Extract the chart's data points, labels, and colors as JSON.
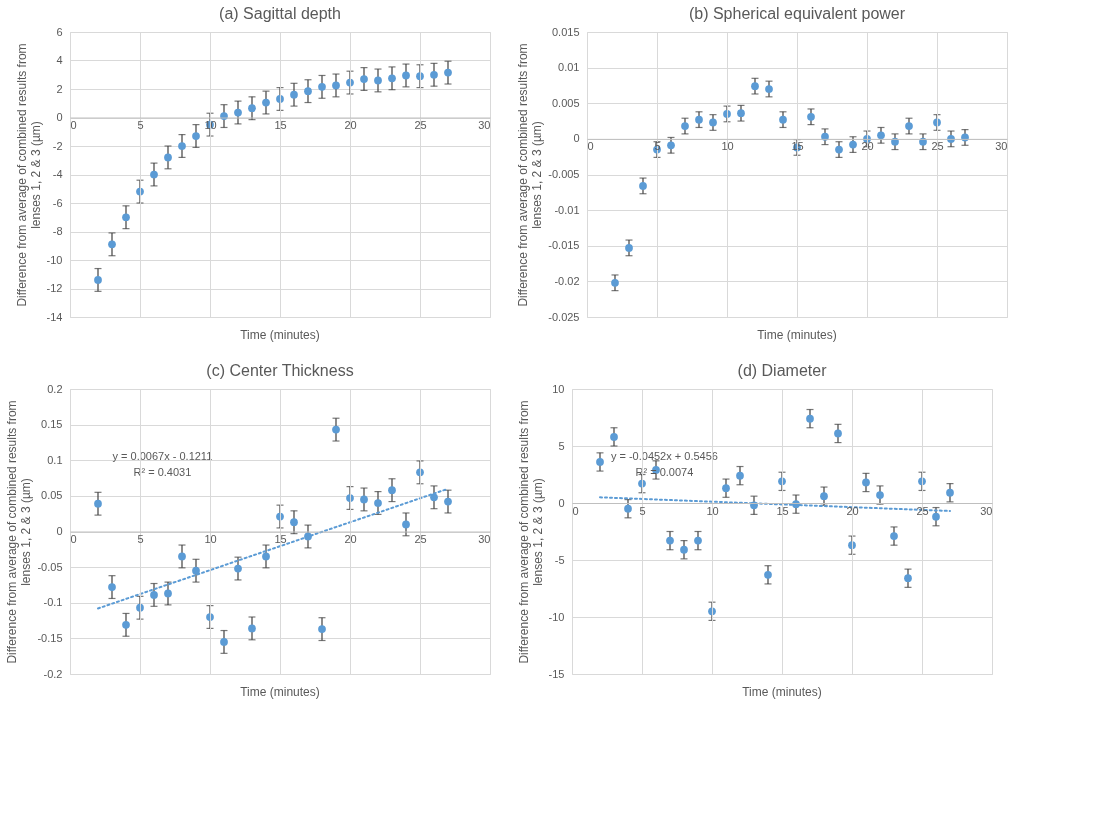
{
  "chart_data": [
    {
      "type": "scatter",
      "title": "(a) Sagittal depth",
      "xlabel": "Time (minutes)",
      "ylabel": "Difference from average of combined results from lenses 1, 2 & 3 (µm)",
      "xlim": [
        0,
        30
      ],
      "xticks": [
        0,
        5,
        10,
        15,
        20,
        25,
        30
      ],
      "ylim": [
        -14,
        6
      ],
      "yticks": [
        -14,
        -12,
        -10,
        -8,
        -6,
        -4,
        -2,
        0,
        2,
        4,
        6
      ],
      "grid": true,
      "marker": "circle",
      "series": [
        {
          "color": "#5b9bd5",
          "x": [
            2,
            3,
            4,
            5,
            6,
            7,
            8,
            9,
            10,
            11,
            12,
            13,
            14,
            15,
            16,
            17,
            18,
            19,
            20,
            21,
            22,
            23,
            24,
            25,
            26,
            27
          ],
          "values": [
            -11.4,
            -8.9,
            -7.0,
            -5.2,
            -4.0,
            -2.8,
            -2.0,
            -1.3,
            -0.5,
            0.1,
            0.35,
            0.65,
            1.05,
            1.3,
            1.6,
            1.85,
            2.15,
            2.25,
            2.45,
            2.7,
            2.6,
            2.75,
            2.95,
            2.9,
            3.0,
            3.15
          ],
          "errors": [
            0.8,
            0.8,
            0.8,
            0.8,
            0.8,
            0.8,
            0.8,
            0.8,
            0.8,
            0.8,
            0.8,
            0.8,
            0.8,
            0.8,
            0.8,
            0.8,
            0.8,
            0.8,
            0.8,
            0.8,
            0.8,
            0.8,
            0.8,
            0.8,
            0.8,
            0.8
          ]
        }
      ]
    },
    {
      "type": "scatter",
      "title": "(b) Spherical equivalent power",
      "xlabel": "Time (minutes)",
      "ylabel": "Difference from average of combined results from lenses 1, 2 & 3 (µm)",
      "xlim": [
        0,
        30
      ],
      "xticks": [
        0,
        5,
        10,
        15,
        20,
        25,
        30
      ],
      "ylim": [
        -0.025,
        0.015
      ],
      "yticks": [
        -0.025,
        -0.02,
        -0.015,
        -0.01,
        -0.005,
        0,
        0.005,
        0.01,
        0.015
      ],
      "grid": true,
      "marker": "circle",
      "series": [
        {
          "color": "#5b9bd5",
          "x": [
            2,
            3,
            4,
            5,
            6,
            7,
            8,
            9,
            10,
            11,
            12,
            13,
            14,
            15,
            16,
            17,
            18,
            19,
            20,
            21,
            22,
            23,
            24,
            25,
            26,
            27
          ],
          "values": [
            -0.0202,
            -0.0153,
            -0.0066,
            -0.0015,
            -0.0009,
            0.0018,
            0.0027,
            0.0023,
            0.0035,
            0.0036,
            0.0074,
            0.007,
            0.0027,
            -0.0012,
            0.0031,
            0.0003,
            -0.0015,
            -0.0008,
            0.0,
            0.0005,
            -0.0004,
            0.0018,
            -0.0004,
            0.0023,
            0.0,
            0.0002
          ],
          "errors": [
            0.0011,
            0.0011,
            0.0011,
            0.0011,
            0.0011,
            0.0011,
            0.0011,
            0.0011,
            0.0011,
            0.0011,
            0.0011,
            0.0011,
            0.0011,
            0.0011,
            0.0011,
            0.0011,
            0.0011,
            0.0011,
            0.0011,
            0.0011,
            0.0011,
            0.0011,
            0.0011,
            0.0011,
            0.0011,
            0.0011
          ]
        }
      ]
    },
    {
      "type": "scatter",
      "title": "(c) Center Thickness",
      "xlabel": "Time (minutes)",
      "ylabel": "Difference from average of combined results from lenses 1, 2 & 3 (µm)",
      "xlim": [
        0,
        30
      ],
      "xticks": [
        0,
        5,
        10,
        15,
        20,
        25,
        30
      ],
      "ylim": [
        -0.2,
        0.2
      ],
      "yticks": [
        -0.2,
        -0.15,
        -0.1,
        -0.05,
        0,
        0.05,
        0.1,
        0.15,
        0.2
      ],
      "grid": true,
      "marker": "circle",
      "annotations": [
        "y = 0.0067x - 0.1211",
        "R² = 0.4031"
      ],
      "series": [
        {
          "color": "#5b9bd5",
          "x": [
            2,
            3,
            4,
            5,
            6,
            7,
            8,
            9,
            10,
            11,
            12,
            13,
            14,
            15,
            16,
            17,
            18,
            19,
            20,
            21,
            22,
            23,
            24,
            25,
            26,
            27
          ],
          "values": [
            0.039,
            -0.078,
            -0.131,
            -0.107,
            -0.089,
            -0.087,
            -0.035,
            -0.055,
            -0.12,
            -0.155,
            -0.052,
            -0.136,
            -0.035,
            0.021,
            0.013,
            -0.007,
            -0.137,
            0.143,
            0.047,
            0.045,
            0.04,
            0.058,
            0.01,
            0.083,
            0.048,
            0.042
          ],
          "errors": [
            0.016,
            0.016,
            0.016,
            0.016,
            0.016,
            0.016,
            0.016,
            0.016,
            0.016,
            0.016,
            0.016,
            0.016,
            0.016,
            0.016,
            0.016,
            0.016,
            0.016,
            0.016,
            0.016,
            0.016,
            0.016,
            0.016,
            0.016,
            0.016,
            0.016,
            0.016
          ]
        },
        {
          "type": "line",
          "color": "#5b9bd5",
          "x": [
            2,
            27
          ],
          "values": [
            -0.108,
            0.06
          ],
          "line_style": "dotted",
          "marker": "none"
        }
      ]
    },
    {
      "type": "scatter",
      "title": "(d) Diameter",
      "xlabel": "Time (minutes)",
      "ylabel": "Difference from average of combined results from lenses 1, 2 & 3 (µm)",
      "xlim": [
        0,
        30
      ],
      "xticks": [
        0,
        5,
        10,
        15,
        20,
        25,
        30
      ],
      "ylim": [
        -15,
        10
      ],
      "yticks": [
        -15,
        -10,
        -5,
        0,
        5,
        10
      ],
      "grid": true,
      "marker": "circle",
      "annotations": [
        "y = -0.0452x + 0.5456",
        "R² = 0.0074"
      ],
      "series": [
        {
          "color": "#5b9bd5",
          "x": [
            2,
            3,
            4,
            5,
            6,
            7,
            8,
            9,
            10,
            11,
            12,
            13,
            14,
            15,
            16,
            17,
            18,
            19,
            20,
            21,
            22,
            23,
            24,
            25,
            26,
            27
          ],
          "values": [
            3.6,
            5.8,
            -0.5,
            1.7,
            2.9,
            -3.3,
            -4.1,
            -3.3,
            -9.5,
            1.3,
            2.4,
            -0.2,
            -6.3,
            1.9,
            -0.1,
            7.4,
            0.6,
            6.1,
            -3.7,
            1.8,
            0.7,
            -2.9,
            -6.6,
            1.9,
            -1.2,
            0.9
          ],
          "errors": [
            0.8,
            0.8,
            0.8,
            0.8,
            0.8,
            0.8,
            0.8,
            0.8,
            0.8,
            0.8,
            0.8,
            0.8,
            0.8,
            0.8,
            0.8,
            0.8,
            0.8,
            0.8,
            0.8,
            0.8,
            0.8,
            0.8,
            0.8,
            0.8,
            0.8,
            0.8
          ]
        },
        {
          "type": "line",
          "color": "#5b9bd5",
          "x": [
            2,
            27
          ],
          "values": [
            0.5,
            -0.7
          ],
          "line_style": "dotted",
          "marker": "none"
        }
      ]
    }
  ]
}
